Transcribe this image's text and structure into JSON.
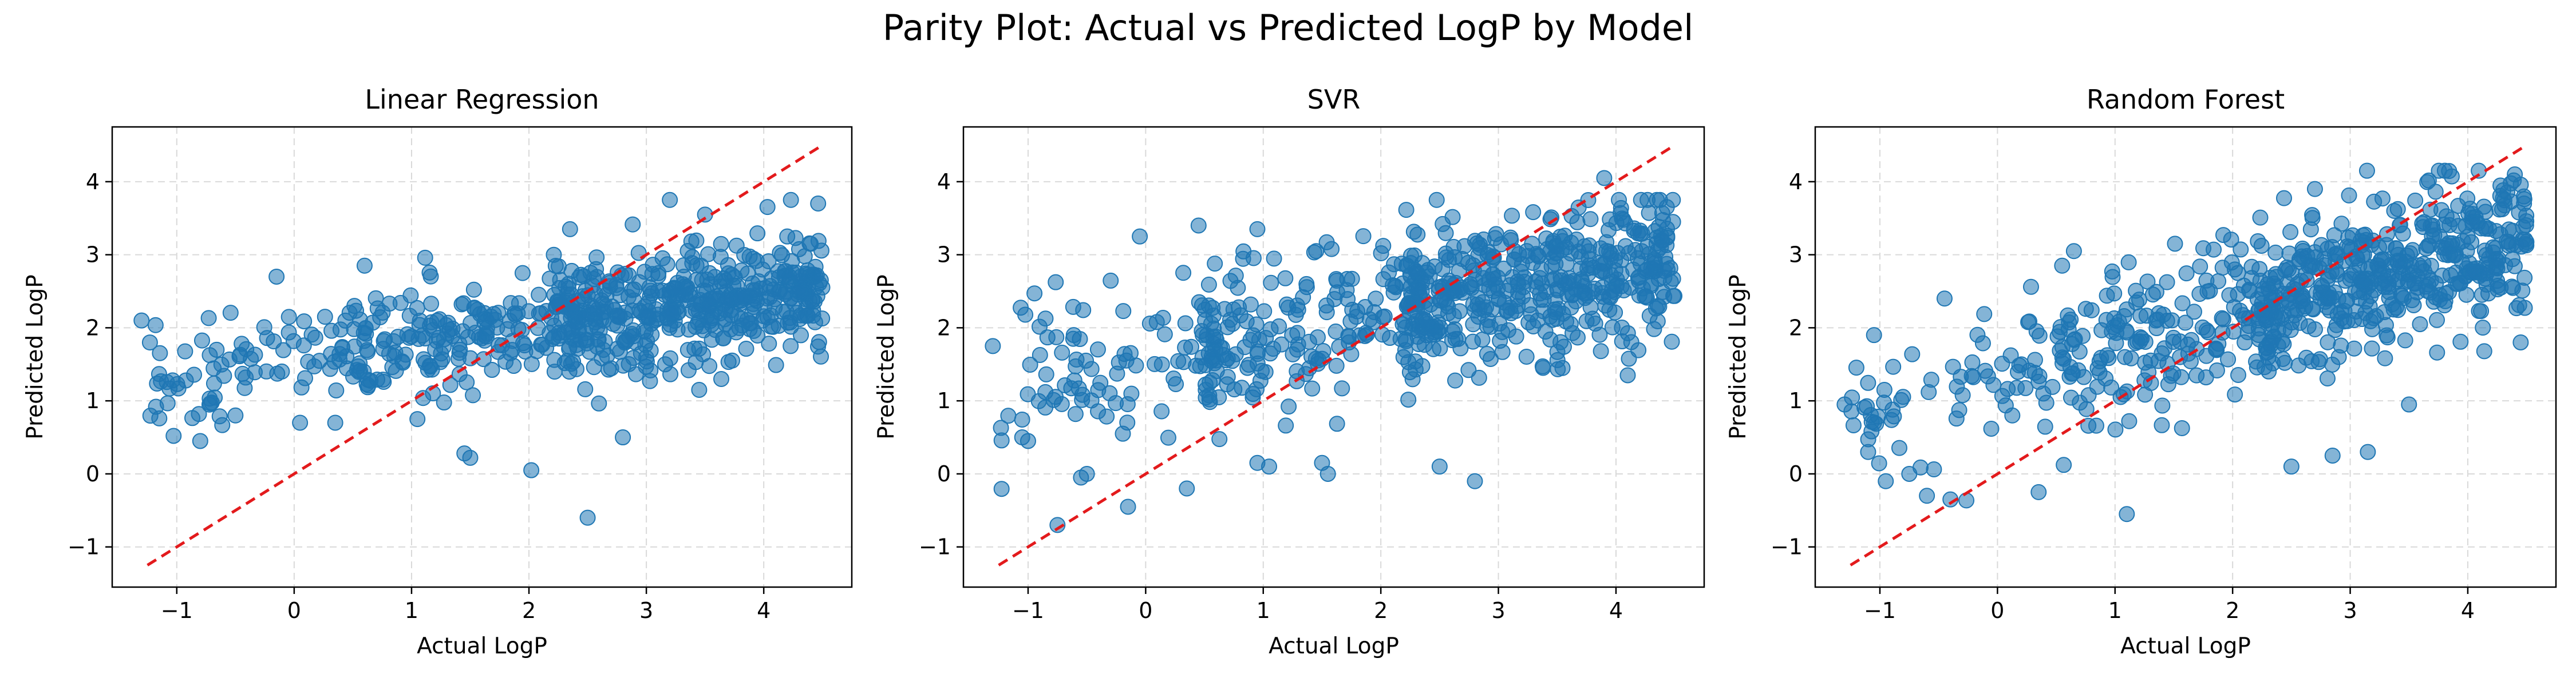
{
  "title": "Parity Plot: Actual vs Predicted LogP by Model",
  "colors": {
    "points": "#1f77b4",
    "reference_line": "#e31a1c",
    "grid": "#d9d9d9",
    "axes": "#000000"
  },
  "chart_data": [
    {
      "type": "scatter",
      "title": "Linear Regression",
      "xlabel": "Actual LogP",
      "ylabel": "Predicted LogP",
      "xlim": [
        -1.55,
        4.75
      ],
      "ylim": [
        -1.55,
        4.75
      ],
      "xticks": [
        -1,
        0,
        1,
        2,
        3,
        4
      ],
      "yticks": [
        -1,
        0,
        1,
        2,
        3,
        4
      ],
      "grid": true,
      "reference_line": {
        "from": [
          -1.25,
          -1.25
        ],
        "to": [
          4.5,
          4.5
        ],
        "style": "dashed"
      },
      "point_style": {
        "alpha": 0.55,
        "marker": "circle"
      },
      "seed": 11,
      "params": {
        "slope": 0.22,
        "intercept": 1.58,
        "noise": 0.38,
        "clampLow": 0.35,
        "clampHigh": 3.75
      },
      "outliers": [
        [
          -1.3,
          2.1
        ],
        [
          1.45,
          0.28
        ],
        [
          1.5,
          0.22
        ],
        [
          2.02,
          0.05
        ],
        [
          2.5,
          -0.6
        ],
        [
          2.8,
          0.5
        ],
        [
          3.2,
          3.75
        ],
        [
          3.45,
          1.15
        ],
        [
          -0.8,
          0.45
        ],
        [
          -0.5,
          0.8
        ],
        [
          0.05,
          0.7
        ],
        [
          0.35,
          0.7
        ],
        [
          -0.15,
          2.7
        ],
        [
          0.6,
          2.85
        ],
        [
          2.35,
          3.35
        ],
        [
          3.5,
          3.55
        ],
        [
          4.2,
          3.25
        ],
        [
          4.4,
          3.15
        ],
        [
          4.3,
          2.5
        ],
        [
          1.05,
          0.75
        ]
      ]
    },
    {
      "type": "scatter",
      "title": "SVR",
      "xlabel": "Actual LogP",
      "ylabel": "Predicted LogP",
      "xlim": [
        -1.55,
        4.75
      ],
      "ylim": [
        -1.55,
        4.75
      ],
      "xticks": [
        -1,
        0,
        1,
        2,
        3,
        4
      ],
      "yticks": [
        -1,
        0,
        1,
        2,
        3,
        4
      ],
      "grid": true,
      "reference_line": {
        "from": [
          -1.25,
          -1.25
        ],
        "to": [
          4.5,
          4.5
        ],
        "style": "dashed"
      },
      "point_style": {
        "alpha": 0.55,
        "marker": "circle"
      },
      "seed": 23,
      "params": {
        "slope": 0.3,
        "intercept": 1.58,
        "noise": 0.5,
        "clampLow": -0.3,
        "clampHigh": 3.75
      },
      "outliers": [
        [
          -1.3,
          1.75
        ],
        [
          -1.05,
          0.5
        ],
        [
          -1.0,
          0.45
        ],
        [
          -0.75,
          -0.7
        ],
        [
          -0.55,
          -0.05
        ],
        [
          -0.5,
          0.0
        ],
        [
          -0.15,
          -0.45
        ],
        [
          0.35,
          -0.2
        ],
        [
          0.95,
          0.15
        ],
        [
          1.05,
          0.1
        ],
        [
          1.5,
          0.15
        ],
        [
          1.55,
          0.0
        ],
        [
          2.5,
          0.1
        ],
        [
          2.8,
          -0.1
        ],
        [
          0.45,
          3.4
        ],
        [
          0.95,
          3.35
        ],
        [
          -0.05,
          3.25
        ],
        [
          1.45,
          3.05
        ],
        [
          4.1,
          1.35
        ],
        [
          3.9,
          4.05
        ]
      ]
    },
    {
      "type": "scatter",
      "title": "Random Forest",
      "xlabel": "Actual LogP",
      "ylabel": "Predicted LogP",
      "xlim": [
        -1.55,
        4.75
      ],
      "ylim": [
        -1.55,
        4.75
      ],
      "xticks": [
        -1,
        0,
        1,
        2,
        3,
        4
      ],
      "yticks": [
        -1,
        0,
        1,
        2,
        3,
        4
      ],
      "grid": true,
      "reference_line": {
        "from": [
          -1.25,
          -1.25
        ],
        "to": [
          4.5,
          4.5
        ],
        "style": "dashed"
      },
      "point_style": {
        "alpha": 0.55,
        "marker": "circle"
      },
      "seed": 37,
      "params": {
        "slope": 0.42,
        "intercept": 1.35,
        "noise": 0.5,
        "clampLow": -0.4,
        "clampHigh": 4.15
      },
      "outliers": [
        [
          -1.3,
          0.95
        ],
        [
          -1.1,
          0.3
        ],
        [
          -0.95,
          -0.1
        ],
        [
          -0.75,
          0.0
        ],
        [
          -0.6,
          -0.3
        ],
        [
          -0.4,
          -0.35
        ],
        [
          0.35,
          -0.25
        ],
        [
          1.1,
          -0.55
        ],
        [
          2.5,
          0.1
        ],
        [
          3.15,
          0.3
        ],
        [
          2.85,
          0.25
        ],
        [
          3.5,
          0.95
        ],
        [
          -1.05,
          1.9
        ],
        [
          -0.45,
          2.4
        ],
        [
          0.55,
          2.85
        ],
        [
          0.65,
          3.05
        ],
        [
          2.7,
          3.9
        ],
        [
          3.7,
          3.4
        ],
        [
          4.4,
          4.1
        ],
        [
          4.45,
          1.8
        ]
      ]
    }
  ]
}
